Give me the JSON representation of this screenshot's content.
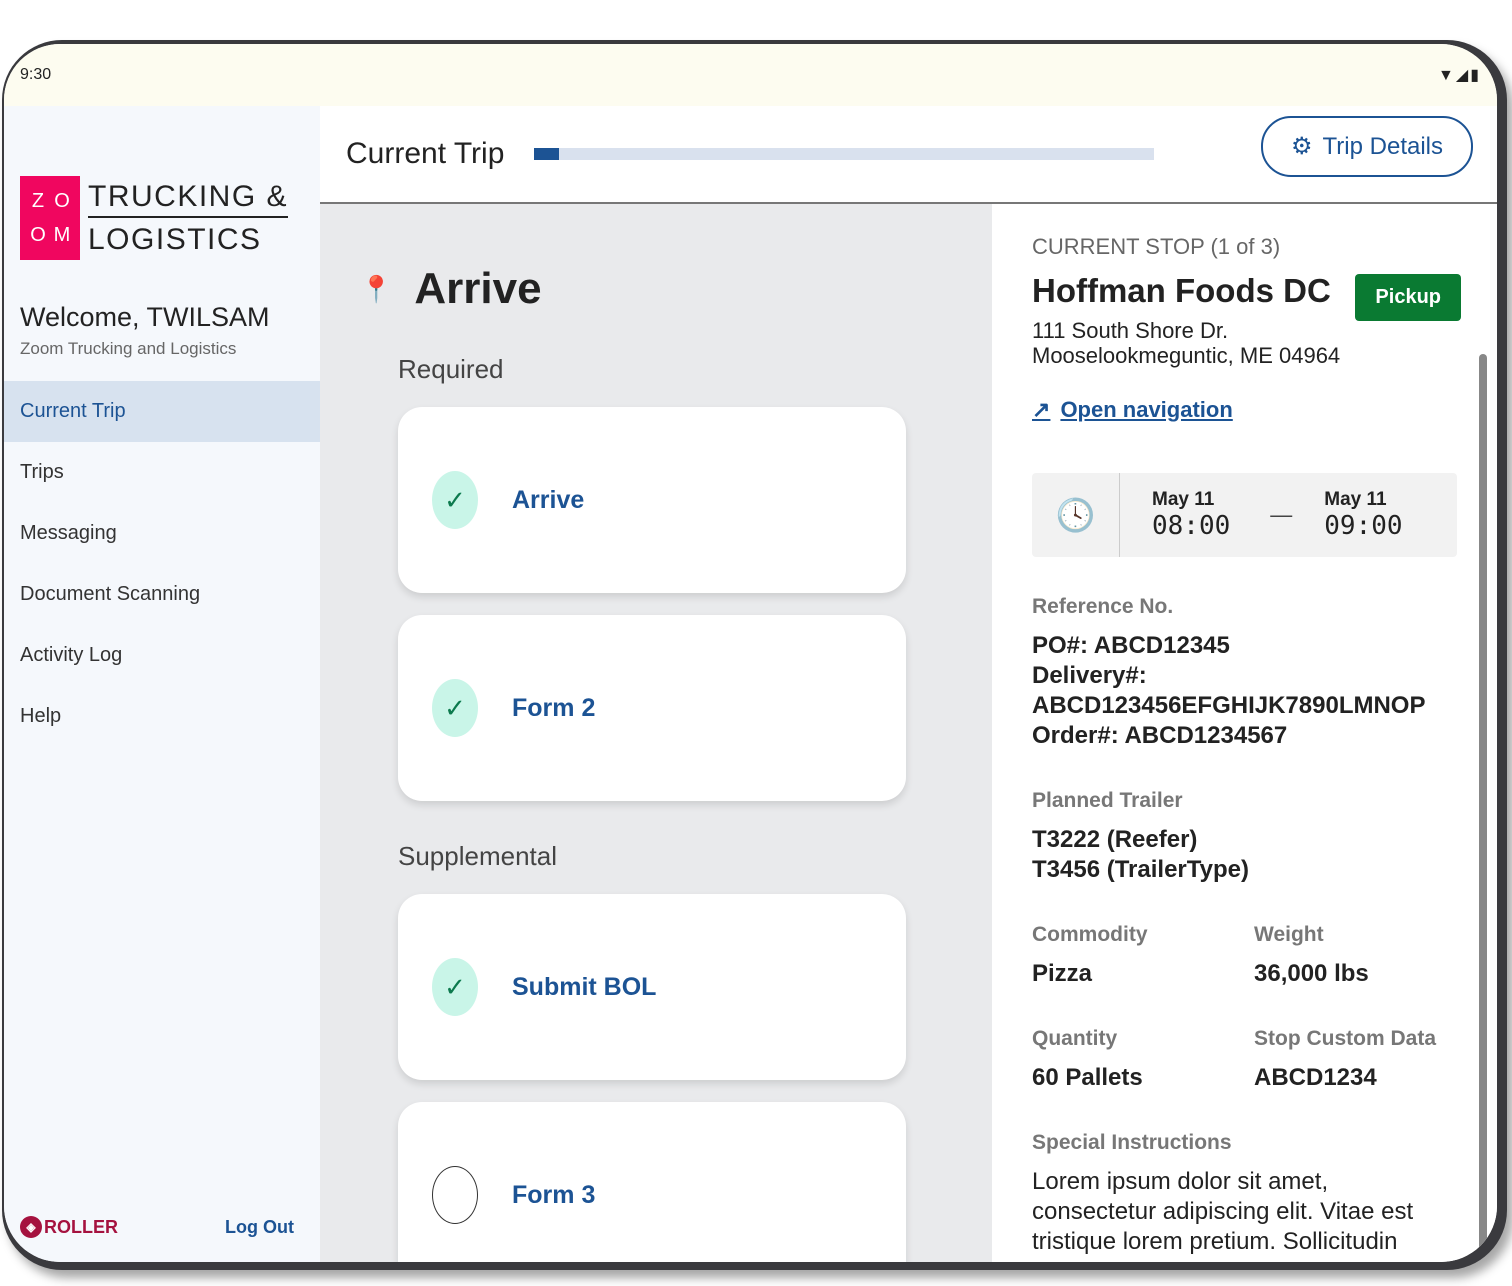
{
  "status": {
    "time": "9:30",
    "icons": [
      "wifi-icon",
      "signal-icon",
      "battery-icon"
    ]
  },
  "sidebar": {
    "logo": {
      "letters": [
        "Z",
        "O",
        "O",
        "M"
      ],
      "line1": "TRUCKING &",
      "line2": "LOGISTICS",
      "color": "#f0065f"
    },
    "welcome": "Welcome, TWILSAM",
    "company": "Zoom Trucking and Logistics",
    "items": [
      {
        "label": "Current Trip",
        "active": true
      },
      {
        "label": "Trips"
      },
      {
        "label": "Messaging"
      },
      {
        "label": "Document Scanning"
      },
      {
        "label": "Activity Log"
      },
      {
        "label": "Help"
      }
    ],
    "brand": "ROLLER",
    "logout": "Log Out"
  },
  "header": {
    "title": "Current Trip",
    "progress_percent": 4,
    "trip_details": "Trip Details"
  },
  "main": {
    "title": "Arrive",
    "required_label": "Required",
    "required": [
      {
        "label": "Arrive",
        "done": true
      },
      {
        "label": "Form 2",
        "done": true
      }
    ],
    "supplemental_label": "Supplemental",
    "supplemental": [
      {
        "label": "Submit BOL",
        "done": true
      },
      {
        "label": "Form 3",
        "done": false
      }
    ]
  },
  "stop": {
    "heading": "CURRENT STOP (1 of 3)",
    "name": "Hoffman Foods DC",
    "badge": "Pickup",
    "address1": "111 South Shore Dr.",
    "address2": "Mooselookmeguntic, ME 04964",
    "open_nav": "Open navigation",
    "start_date": "May 11",
    "start_time": "08:00",
    "end_date": "May 11",
    "end_time": "09:00",
    "ref_label": "Reference No.",
    "po": "PO#: ABCD12345",
    "delivery": "Delivery#:",
    "delivery_value": "ABCD123456EFGHIJK7890LMNOP",
    "order": "Order#: ABCD1234567",
    "trailer_label": "Planned Trailer",
    "trailer1": "T3222 (Reefer)",
    "trailer2": "T3456 (TrailerType)",
    "commodity_label": "Commodity",
    "commodity": "Pizza",
    "weight_label": "Weight",
    "weight": "36,000 lbs",
    "quantity_label": "Quantity",
    "quantity": "60 Pallets",
    "custom_label": "Stop Custom Data",
    "custom": "ABCD1234",
    "instructions_label": "Special Instructions",
    "instructions": "Lorem ipsum dolor sit amet, consectetur adipiscing elit. Vitae est tristique lorem pretium. Sollicitudin"
  }
}
